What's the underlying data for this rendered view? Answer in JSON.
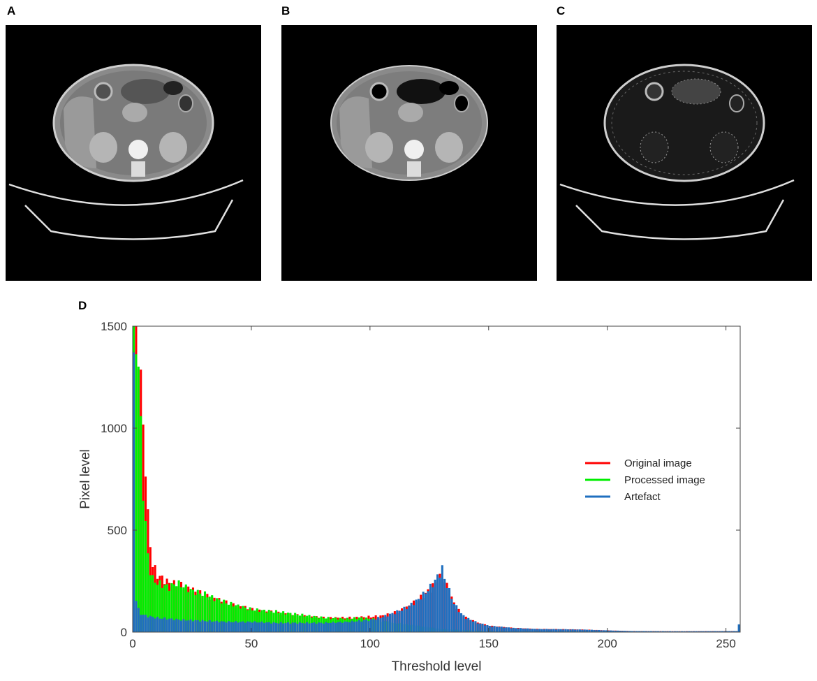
{
  "panels": [
    {
      "letter": "A",
      "variant": "original"
    },
    {
      "letter": "B",
      "variant": "processed"
    },
    {
      "letter": "C",
      "variant": "artefact"
    }
  ],
  "chart_letter": "D",
  "chart_data": {
    "type": "bar",
    "title": "",
    "xlabel": "Threshold level",
    "ylabel": "Pixel level",
    "xlim": [
      0,
      256
    ],
    "ylim": [
      0,
      1500
    ],
    "xticks": [
      0,
      50,
      100,
      150,
      200,
      250
    ],
    "yticks": [
      0,
      500,
      1000,
      1500
    ],
    "legend_position": "right",
    "series": [
      {
        "name": "Original image",
        "color": "#ff0000",
        "points": [
          [
            0,
            1500
          ],
          [
            2,
            1400
          ],
          [
            3,
            1230
          ],
          [
            4,
            1000
          ],
          [
            5,
            820
          ],
          [
            6,
            560
          ],
          [
            7,
            430
          ],
          [
            8,
            330
          ],
          [
            10,
            280
          ],
          [
            15,
            240
          ],
          [
            20,
            230
          ],
          [
            30,
            180
          ],
          [
            40,
            140
          ],
          [
            50,
            110
          ],
          [
            60,
            95
          ],
          [
            70,
            80
          ],
          [
            80,
            70
          ],
          [
            90,
            70
          ],
          [
            100,
            75
          ],
          [
            105,
            80
          ],
          [
            110,
            95
          ],
          [
            115,
            120
          ],
          [
            120,
            160
          ],
          [
            125,
            210
          ],
          [
            128,
            260
          ],
          [
            130,
            270
          ],
          [
            131,
            250
          ],
          [
            133,
            200
          ],
          [
            135,
            140
          ],
          [
            138,
            90
          ],
          [
            140,
            70
          ],
          [
            145,
            45
          ],
          [
            150,
            30
          ],
          [
            160,
            20
          ],
          [
            170,
            15
          ],
          [
            180,
            14
          ],
          [
            190,
            12
          ],
          [
            200,
            8
          ],
          [
            210,
            5
          ],
          [
            230,
            4
          ],
          [
            255,
            5
          ]
        ]
      },
      {
        "name": "Processed image",
        "color": "#00ee00",
        "points": [
          [
            0,
            1500
          ],
          [
            1,
            1450
          ],
          [
            2,
            1300
          ],
          [
            3,
            1000
          ],
          [
            4,
            700
          ],
          [
            5,
            520
          ],
          [
            6,
            380
          ],
          [
            7,
            300
          ],
          [
            8,
            260
          ],
          [
            10,
            240
          ],
          [
            15,
            220
          ],
          [
            18,
            240
          ],
          [
            20,
            230
          ],
          [
            25,
            200
          ],
          [
            30,
            185
          ],
          [
            35,
            160
          ],
          [
            40,
            140
          ],
          [
            50,
            110
          ],
          [
            60,
            100
          ],
          [
            70,
            85
          ],
          [
            80,
            70
          ],
          [
            90,
            65
          ],
          [
            95,
            70
          ],
          [
            100,
            65
          ],
          [
            105,
            55
          ],
          [
            110,
            45
          ],
          [
            120,
            30
          ],
          [
            130,
            15
          ],
          [
            140,
            10
          ],
          [
            150,
            5
          ],
          [
            255,
            2
          ]
        ]
      },
      {
        "name": "Artefact",
        "color": "#1f6fbf",
        "points": [
          [
            0,
            1400
          ],
          [
            1,
            160
          ],
          [
            2,
            110
          ],
          [
            3,
            90
          ],
          [
            5,
            80
          ],
          [
            10,
            70
          ],
          [
            20,
            60
          ],
          [
            30,
            55
          ],
          [
            40,
            50
          ],
          [
            50,
            50
          ],
          [
            60,
            45
          ],
          [
            70,
            45
          ],
          [
            80,
            45
          ],
          [
            90,
            50
          ],
          [
            100,
            60
          ],
          [
            105,
            75
          ],
          [
            110,
            95
          ],
          [
            115,
            120
          ],
          [
            120,
            160
          ],
          [
            125,
            220
          ],
          [
            128,
            270
          ],
          [
            130,
            310
          ],
          [
            131,
            260
          ],
          [
            133,
            200
          ],
          [
            135,
            140
          ],
          [
            138,
            90
          ],
          [
            140,
            70
          ],
          [
            145,
            45
          ],
          [
            150,
            30
          ],
          [
            160,
            20
          ],
          [
            170,
            15
          ],
          [
            180,
            14
          ],
          [
            190,
            12
          ],
          [
            200,
            8
          ],
          [
            210,
            5
          ],
          [
            230,
            4
          ],
          [
            254,
            5
          ],
          [
            255,
            40
          ]
        ]
      }
    ]
  }
}
